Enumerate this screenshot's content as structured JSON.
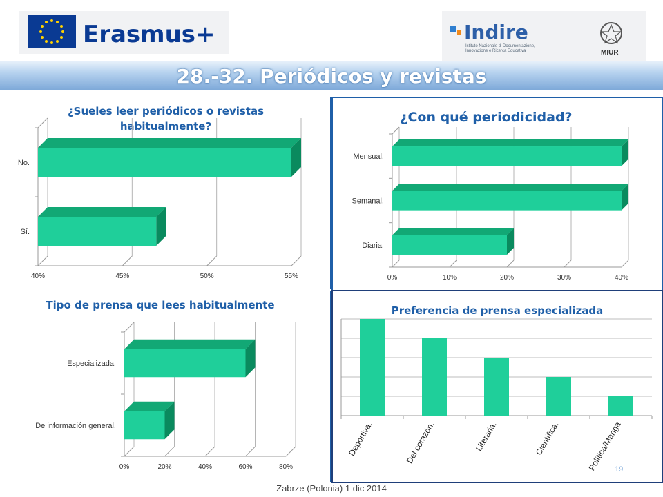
{
  "header": {
    "erasmus_label": "Erasmus+",
    "indire_label": "Indire",
    "indire_caption": [
      "Istituto Nazionale di Documentazione,",
      "Innovazione e Ricerca Educativa"
    ],
    "miur_label": "MIUR"
  },
  "page_title": "28.-32. Periódicos y revistas",
  "footer": "Zabrze (Polonia) 1 dic 2014",
  "slide_number": "19",
  "colors": {
    "bar_front": "#1fcf9a",
    "bar_side": "#0a8a5e",
    "bar_top": "#12a875",
    "title_blue": "#1f5fa8",
    "frame_blue": "#1f5fa8"
  },
  "chart_data": [
    {
      "type": "bar",
      "orientation": "horizontal",
      "title": "¿Sueles leer periódicos o revistas habitualmente?",
      "title_lines": [
        "¿Sueles leer periódicos o revistas",
        "habitualmente?"
      ],
      "categories": [
        "Sí.",
        "No."
      ],
      "values": [
        47,
        55
      ],
      "ticks": [
        "40%",
        "45%",
        "50%",
        "55%"
      ],
      "xlim": [
        40,
        55
      ],
      "grid": true
    },
    {
      "type": "bar",
      "orientation": "horizontal",
      "title": "¿Con qué periodicidad?",
      "categories": [
        "Diaria.",
        "Semanal.",
        "Mensual."
      ],
      "values": [
        20,
        40,
        40
      ],
      "ticks": [
        "0%",
        "10%",
        "20%",
        "30%",
        "40%"
      ],
      "xlim": [
        0,
        40
      ],
      "grid": true
    },
    {
      "type": "bar",
      "orientation": "horizontal",
      "title": "Tipo de prensa que lees habitualmente",
      "categories": [
        "De información general.",
        "Especializada."
      ],
      "values": [
        20,
        60
      ],
      "ticks": [
        "0%",
        "20%",
        "40%",
        "60%",
        "80%"
      ],
      "xlim": [
        0,
        80
      ],
      "grid": true
    },
    {
      "type": "bar",
      "orientation": "vertical",
      "title": "Preferencia de prensa especializada",
      "categories": [
        "Deportiva.",
        "Del corazón.",
        "Literaria.",
        "Científica.",
        "Política/Manga"
      ],
      "values": [
        5,
        4,
        3,
        2,
        1
      ],
      "ylim": [
        0,
        5
      ],
      "grid": true
    }
  ]
}
